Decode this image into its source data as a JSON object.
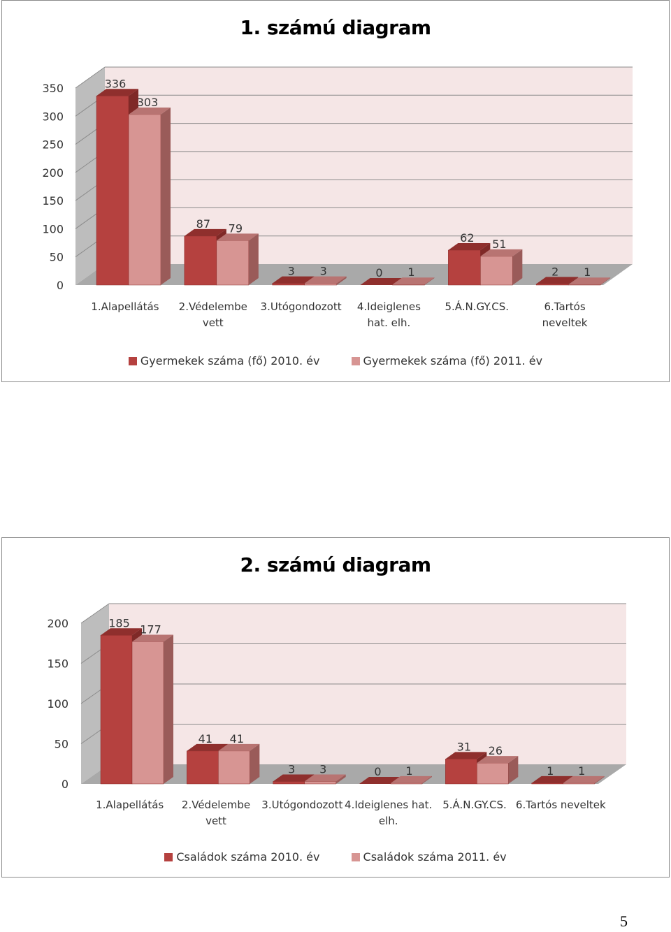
{
  "colors": {
    "series_2010": "#b5413f",
    "series_2010_top": "#8f2f2d",
    "series_2010_side": "#7f2927",
    "series_2011": "#d79593",
    "series_2011_top": "#b87472",
    "series_2011_side": "#9a5b59",
    "plot_back": "#f5e6e6",
    "plot_wall": "#bdbdbd",
    "plot_floor": "#a9a9a9"
  },
  "page": {
    "number": "5"
  },
  "chart_data": [
    {
      "type": "bar",
      "title": "1. számú diagram",
      "categories": [
        [
          "1.Alapellátás"
        ],
        [
          "2.Védelembe",
          "vett"
        ],
        [
          "3.Utógondozott"
        ],
        [
          "4.Ideiglenes",
          "hat. elh."
        ],
        [
          "5.Á.N.GY.CS."
        ],
        [
          "6.Tartós",
          "neveltek"
        ]
      ],
      "series": [
        {
          "name": "Gyermekek száma (fő) 2010. év",
          "values": [
            336,
            87,
            3,
            0,
            62,
            2
          ]
        },
        {
          "name": "Gyermekek száma (fő) 2011. év",
          "values": [
            303,
            79,
            3,
            1,
            51,
            1
          ]
        }
      ],
      "ylim": [
        0,
        350
      ],
      "yticks": [
        0,
        50,
        100,
        150,
        200,
        250,
        300,
        350
      ],
      "grid": true,
      "legend": "bottom"
    },
    {
      "type": "bar",
      "title": "2. számú diagram",
      "categories": [
        [
          "1.Alapellátás"
        ],
        [
          "2.Védelembe",
          "vett"
        ],
        [
          "3.Utógondozott"
        ],
        [
          "4.Ideiglenes hat.",
          "elh."
        ],
        [
          "5.Á.N.GY.CS."
        ],
        [
          "6.Tartós neveltek"
        ]
      ],
      "series": [
        {
          "name": "Családok száma  2010. év",
          "values": [
            185,
            41,
            3,
            0,
            31,
            1
          ]
        },
        {
          "name": "Családok száma  2011. év",
          "values": [
            177,
            41,
            3,
            1,
            26,
            1
          ]
        }
      ],
      "ylim": [
        0,
        200
      ],
      "yticks": [
        0,
        50,
        100,
        150,
        200
      ],
      "grid": true,
      "legend": "bottom"
    }
  ]
}
